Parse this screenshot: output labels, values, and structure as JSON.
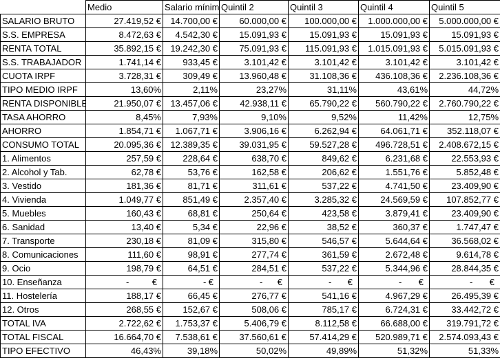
{
  "header": {
    "corner": "",
    "columns": [
      "Medio",
      "Salario mínimo",
      "Quintil 2",
      "Quintil 3",
      "Quintil 4",
      "Quintil 5"
    ]
  },
  "rows": [
    {
      "label": "SALARIO BRUTO",
      "values": [
        "27.419,52 €",
        "14.700,00 €",
        "60.000,00 €",
        "100.000,00 €",
        "1.000.000,00 €",
        "5.000.000,00 €"
      ]
    },
    {
      "label": "S.S. EMPRESA",
      "values": [
        "8.472,63 €",
        "4.542,30 €",
        "15.091,93 €",
        "15.091,93 €",
        "15.091,93 €",
        "15.091,93 €"
      ]
    },
    {
      "label": "RENTA TOTAL",
      "values": [
        "35.892,15 €",
        "19.242,30 €",
        "75.091,93 €",
        "115.091,93 €",
        "1.015.091,93 €",
        "5.015.091,93 €"
      ]
    },
    {
      "label": "S.S. TRABAJADOR",
      "values": [
        "1.741,14 €",
        "933,45 €",
        "3.101,42 €",
        "3.101,42 €",
        "3.101,42 €",
        "3.101,42 €"
      ]
    },
    {
      "label": "CUOTA IRPF",
      "values": [
        "3.728,31 €",
        "309,49 €",
        "13.960,48 €",
        "31.108,36 €",
        "436.108,36 €",
        "2.236.108,36 €"
      ]
    },
    {
      "label": "TIPO MEDIO IRPF",
      "values": [
        "13,60%",
        "2,11%",
        "23,27%",
        "31,11%",
        "43,61%",
        "44,72%"
      ]
    },
    {
      "label": "RENTA DISPONIBLE",
      "values": [
        "21.950,07 €",
        "13.457,06 €",
        "42.938,11 €",
        "65.790,22 €",
        "560.790,22 €",
        "2.760.790,22 €"
      ]
    },
    {
      "label": "TASA AHORRO",
      "values": [
        "8,45%",
        "7,93%",
        "9,10%",
        "9,52%",
        "11,42%",
        "12,75%"
      ]
    },
    {
      "label": "AHORRO",
      "values": [
        "1.854,71 €",
        "1.067,71 €",
        "3.906,16 €",
        "6.262,94 €",
        "64.061,71 €",
        "352.118,07 €"
      ]
    },
    {
      "label": "CONSUMO TOTAL",
      "values": [
        "20.095,36 €",
        "12.389,35 €",
        "39.031,95 €",
        "59.527,28 €",
        "496.728,51 €",
        "2.408.672,15 €"
      ]
    },
    {
      "label": "1. Alimentos",
      "values": [
        "257,59 €",
        "228,64 €",
        "638,70 €",
        "849,62 €",
        "6.231,68 €",
        "22.553,93 €"
      ]
    },
    {
      "label": "2. Alcohol y Tab.",
      "values": [
        "62,78 €",
        "53,76 €",
        "162,58 €",
        "206,62 €",
        "1.551,76 €",
        "5.852,48 €"
      ]
    },
    {
      "label": "3. Vestido",
      "values": [
        "181,36 €",
        "81,71 €",
        "311,61 €",
        "537,22 €",
        "4.741,50 €",
        "23.409,90 €"
      ]
    },
    {
      "label": "4. Vivienda",
      "values": [
        "1.049,77 €",
        "851,49 €",
        "2.357,40 €",
        "3.285,32 €",
        "24.569,59 €",
        "107.852,77 €"
      ]
    },
    {
      "label": "5. Muebles",
      "values": [
        "160,43 €",
        "68,81 €",
        "250,64 €",
        "423,58 €",
        "3.879,41 €",
        "23.409,90 €"
      ]
    },
    {
      "label": "6. Sanidad",
      "values": [
        "13,40 €",
        "5,34 €",
        "22,96 €",
        "38,52 €",
        "360,37 €",
        "1.747,47 €"
      ]
    },
    {
      "label": "7. Transporte",
      "values": [
        "230,18 €",
        "81,09 €",
        "315,80 €",
        "546,57 €",
        "5.644,64 €",
        "36.568,02 €"
      ]
    },
    {
      "label": "8. Comunicaciones",
      "values": [
        "111,60 €",
        "98,91 €",
        "277,74 €",
        "361,59 €",
        "2.672,48 €",
        "9.614,78 €"
      ]
    },
    {
      "label": "9. Ocio",
      "values": [
        "198,79 €",
        "64,51 €",
        "284,51 €",
        "537,22 €",
        "5.344,96 €",
        "28.844,35 €"
      ]
    },
    {
      "label": "10. Enseñanza",
      "values": [
        "-",
        "-",
        "-",
        "-",
        "-",
        "-"
      ],
      "dash": true,
      "currency": "€"
    },
    {
      "label": "11. Hostelería",
      "values": [
        "188,17 €",
        "66,45 €",
        "276,77 €",
        "541,16 €",
        "4.967,29 €",
        "26.495,39 €"
      ]
    },
    {
      "label": "12. Otros",
      "values": [
        "268,55 €",
        "152,67 €",
        "508,06 €",
        "785,17 €",
        "6.724,31 €",
        "33.442,72 €"
      ]
    },
    {
      "label": "TOTAL IVA",
      "values": [
        "2.722,62 €",
        "1.753,37 €",
        "5.406,79 €",
        "8.112,58 €",
        "66.688,00 €",
        "319.791,72 €"
      ]
    },
    {
      "label": "TOTAL FISCAL",
      "values": [
        "16.664,70 €",
        "7.538,61 €",
        "37.560,61 €",
        "57.414,29 €",
        "520.989,71 €",
        "2.574.093,43 €"
      ]
    },
    {
      "label": "TIPO EFECTIVO",
      "values": [
        "46,43%",
        "39,18%",
        "50,02%",
        "49,89%",
        "51,32%",
        "51,33%"
      ]
    }
  ]
}
